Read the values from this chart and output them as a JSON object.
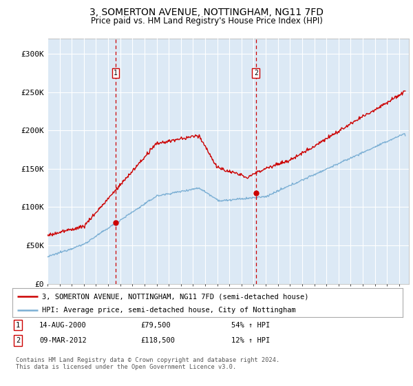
{
  "title": "3, SOMERTON AVENUE, NOTTINGHAM, NG11 7FD",
  "subtitle": "Price paid vs. HM Land Registry's House Price Index (HPI)",
  "background_color": "#dce9f5",
  "plot_bg_color": "#dce9f5",
  "grid_color": "#ffffff",
  "legend_line1": "3, SOMERTON AVENUE, NOTTINGHAM, NG11 7FD (semi-detached house)",
  "legend_line2": "HPI: Average price, semi-detached house, City of Nottingham",
  "transaction1_date": "14-AUG-2000",
  "transaction1_price": "£79,500",
  "transaction1_hpi": "54% ↑ HPI",
  "transaction2_date": "09-MAR-2012",
  "transaction2_price": "£118,500",
  "transaction2_hpi": "12% ↑ HPI",
  "footer": "Contains HM Land Registry data © Crown copyright and database right 2024.\nThis data is licensed under the Open Government Licence v3.0.",
  "ylim": [
    0,
    320000
  ],
  "yticks": [
    0,
    50000,
    100000,
    150000,
    200000,
    250000,
    300000
  ],
  "ytick_labels": [
    "£0",
    "£50K",
    "£100K",
    "£150K",
    "£200K",
    "£250K",
    "£300K"
  ],
  "red_line_color": "#cc0000",
  "blue_line_color": "#7bafd4",
  "vline_color": "#cc0000",
  "marker1_x": 2000.62,
  "marker1_y": 79500,
  "marker2_x": 2012.19,
  "marker2_y": 118500,
  "xmin": 1995.0,
  "xmax": 2024.8
}
